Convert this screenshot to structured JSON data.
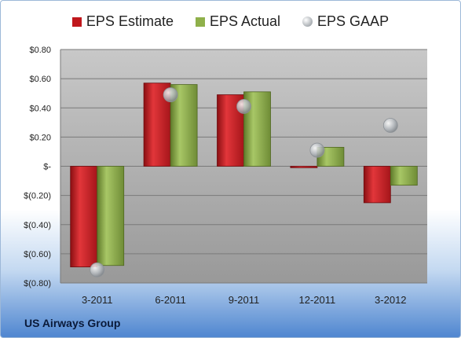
{
  "chart_data": {
    "type": "bar",
    "categories": [
      "3-2011",
      "6-2011",
      "9-2011",
      "12-2011",
      "3-2012"
    ],
    "series": [
      {
        "name": "EPS Estimate",
        "kind": "bar",
        "color": "#c0171c",
        "values": [
          -0.69,
          0.57,
          0.49,
          -0.01,
          -0.25
        ]
      },
      {
        "name": "EPS Actual",
        "kind": "bar",
        "color": "#8fb04a",
        "values": [
          -0.68,
          0.56,
          0.51,
          0.13,
          -0.13
        ]
      },
      {
        "name": "EPS GAAP",
        "kind": "marker",
        "color": "#a9aeb3",
        "values": [
          -0.71,
          0.49,
          0.41,
          0.11,
          0.28
        ]
      }
    ],
    "yticks": [
      {
        "value": 0.8,
        "label": "$0.80"
      },
      {
        "value": 0.6,
        "label": "$0.60"
      },
      {
        "value": 0.4,
        "label": "$0.40"
      },
      {
        "value": 0.2,
        "label": "$0.20"
      },
      {
        "value": 0,
        "label": "$-"
      },
      {
        "value": -0.2,
        "label": "$(0.20)"
      },
      {
        "value": -0.4,
        "label": "$(0.40)"
      },
      {
        "value": -0.6,
        "label": "$(0.60)"
      },
      {
        "value": -0.8,
        "label": "$(0.80)"
      }
    ],
    "ylim": [
      -0.8,
      0.8
    ],
    "grid": true,
    "legend_position": "top",
    "plot_background": [
      "#c8c8c8",
      "#999999"
    ]
  },
  "legend": {
    "estimate": "EPS Estimate",
    "actual": "EPS Actual",
    "gaap": "EPS GAAP"
  },
  "company": "US Airways Group"
}
